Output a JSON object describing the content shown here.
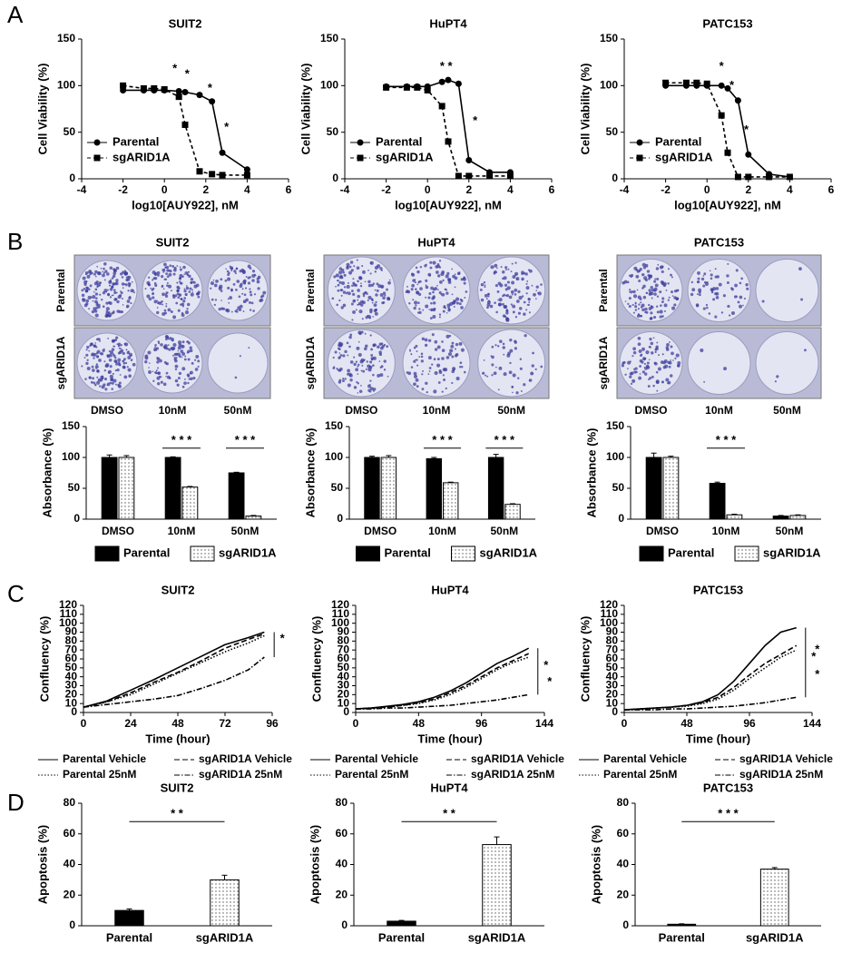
{
  "panel_labels": [
    "A",
    "B",
    "C",
    "D"
  ],
  "plates": [
    {
      "title": "SUIT2",
      "rows": [
        "Parental",
        "sgARID1A"
      ],
      "columns": [
        "DMSO",
        "10nM",
        "50nM"
      ]
    },
    {
      "title": "HuPT4",
      "rows": [
        "Parental",
        "sgARID1A"
      ],
      "columns": [
        "DMSO",
        "10nM",
        "50nM"
      ]
    },
    {
      "title": "PATC153",
      "rows": [
        "Parental",
        "sgARID1A"
      ],
      "columns": [
        "DMSO",
        "10nM",
        "50nM"
      ]
    }
  ],
  "chart_data": [
    {
      "type": "line",
      "title": "SUIT2",
      "x_label": "log10[AUY922], nM",
      "y_label": "Cell Viability (%)",
      "x": [
        -2,
        -1,
        -0.5,
        0,
        0.7,
        1,
        1.7,
        2.3,
        2.8,
        4
      ],
      "xlim": [
        -4,
        6
      ],
      "xticks": [
        -4,
        -2,
        0,
        2,
        4,
        6
      ],
      "ylim": [
        0,
        150
      ],
      "yticks": [
        0,
        50,
        100,
        150
      ],
      "legend": "lower left",
      "series": [
        {
          "name": "Parental",
          "color": "#000000",
          "dash": "none",
          "marker": "circle",
          "values": [
            95,
            95,
            95,
            95,
            94,
            93,
            90,
            83,
            28,
            10
          ]
        },
        {
          "name": "sgARID1A",
          "color": "#000000",
          "dash": "4 3",
          "marker": "square",
          "values": [
            100,
            97,
            97,
            96,
            88,
            58,
            8,
            5,
            4,
            4
          ]
        }
      ],
      "annotations": [
        {
          "text": "*",
          "x": 0.5,
          "y": 118
        },
        {
          "text": "*",
          "x": 1.1,
          "y": 112
        },
        {
          "text": "*",
          "x": 2.2,
          "y": 97
        },
        {
          "text": "*",
          "x": 3,
          "y": 55
        }
      ]
    },
    {
      "type": "line",
      "title": "HuPT4",
      "x_label": "log10[AUY922], nM",
      "y_label": "Cell Viability (%)",
      "x": [
        -2,
        -1,
        -0.5,
        0,
        0.7,
        1,
        1.5,
        2,
        3,
        4
      ],
      "xlim": [
        -4,
        6
      ],
      "xticks": [
        -4,
        -2,
        0,
        2,
        4,
        6
      ],
      "ylim": [
        0,
        150
      ],
      "yticks": [
        0,
        50,
        100,
        150
      ],
      "legend": "lower left",
      "series": [
        {
          "name": "Parental",
          "color": "#000000",
          "dash": "none",
          "marker": "circle",
          "values": [
            99,
            99,
            99,
            99,
            104,
            106,
            102,
            20,
            7,
            7
          ]
        },
        {
          "name": "sgARID1A",
          "color": "#000000",
          "dash": "4 3",
          "marker": "square",
          "values": [
            98,
            98,
            98,
            95,
            78,
            40,
            3,
            3,
            3,
            3
          ]
        }
      ],
      "annotations": [
        {
          "text": "* *",
          "x": 0.9,
          "y": 120
        },
        {
          "text": "*",
          "x": 2.3,
          "y": 62
        }
      ]
    },
    {
      "type": "line",
      "title": "PATC153",
      "x_label": "log10[AUY922], nM",
      "y_label": "Cell Viability (%)",
      "x": [
        -2,
        -1,
        -0.5,
        0,
        0.7,
        1,
        1.5,
        2,
        3,
        4
      ],
      "xlim": [
        -4,
        6
      ],
      "xticks": [
        -4,
        -2,
        0,
        2,
        4,
        6
      ],
      "ylim": [
        0,
        150
      ],
      "yticks": [
        0,
        50,
        100,
        150
      ],
      "legend": "lower left",
      "series": [
        {
          "name": "Parental",
          "color": "#000000",
          "dash": "none",
          "marker": "circle",
          "values": [
            100,
            100,
            100,
            100,
            100,
            97,
            84,
            26,
            5,
            2
          ]
        },
        {
          "name": "sgARID1A",
          "color": "#000000",
          "dash": "4 3",
          "marker": "square",
          "values": [
            103,
            103,
            103,
            102,
            68,
            28,
            2,
            2,
            2,
            2
          ]
        }
      ],
      "annotations": [
        {
          "text": "*",
          "x": 0.7,
          "y": 120
        },
        {
          "text": "*",
          "x": 1.2,
          "y": 100
        },
        {
          "text": "*",
          "x": 1.9,
          "y": 52
        }
      ]
    },
    {
      "type": "bar",
      "y_label": "Absorbance (%)",
      "categories": [
        "DMSO",
        "10nM",
        "50nM"
      ],
      "ylim": [
        0,
        150
      ],
      "yticks": [
        0,
        50,
        100,
        150
      ],
      "legend": "bottom",
      "series": [
        {
          "name": "Parental",
          "color": "#000000",
          "fill": "solid",
          "values": [
            100,
            100,
            75
          ],
          "errors": [
            4,
            1,
            1
          ]
        },
        {
          "name": "sgARID1A",
          "color": "#000000",
          "fill": "dots",
          "values": [
            100,
            52,
            5
          ],
          "errors": [
            3,
            1,
            1
          ]
        }
      ],
      "annotations": [
        {
          "text": "* * *",
          "x": [
            0.7,
            1.3
          ],
          "y": 115
        },
        {
          "text": "* * *",
          "x": [
            1.7,
            2.3
          ],
          "y": 115
        }
      ]
    },
    {
      "type": "bar",
      "y_label": "Absorbance (%)",
      "categories": [
        "DMSO",
        "10nM",
        "50nM"
      ],
      "ylim": [
        0,
        150
      ],
      "yticks": [
        0,
        50,
        100,
        150
      ],
      "legend": "bottom",
      "series": [
        {
          "name": "Parental",
          "color": "#000000",
          "fill": "solid",
          "values": [
            100,
            98,
            100
          ],
          "errors": [
            2,
            2,
            5
          ]
        },
        {
          "name": "sgARID1A",
          "color": "#000000",
          "fill": "dots",
          "values": [
            100,
            59,
            24
          ],
          "errors": [
            3,
            1,
            1
          ]
        }
      ],
      "annotations": [
        {
          "text": "* * *",
          "x": [
            0.7,
            1.3
          ],
          "y": 115
        },
        {
          "text": "* * *",
          "x": [
            1.7,
            2.3
          ],
          "y": 115
        }
      ]
    },
    {
      "type": "bar",
      "y_label": "Absorbance (%)",
      "categories": [
        "DMSO",
        "10nM",
        "50nM"
      ],
      "ylim": [
        0,
        150
      ],
      "yticks": [
        0,
        50,
        100,
        150
      ],
      "legend": "bottom",
      "series": [
        {
          "name": "Parental",
          "color": "#000000",
          "fill": "solid",
          "values": [
            100,
            58,
            5
          ],
          "errors": [
            7,
            2,
            1
          ]
        },
        {
          "name": "sgARID1A",
          "color": "#000000",
          "fill": "dots",
          "values": [
            100,
            7,
            6
          ],
          "errors": [
            2,
            1,
            1
          ]
        }
      ],
      "annotations": [
        {
          "text": "* * *",
          "x": [
            0.7,
            1.3
          ],
          "y": 115
        }
      ]
    },
    {
      "type": "line",
      "title": "SUIT2",
      "x_label": "Time (hour)",
      "y_label": "Confluency (%)",
      "x": [
        0,
        12,
        24,
        36,
        48,
        60,
        72,
        84,
        92
      ],
      "xlim": [
        0,
        96
      ],
      "xticks": [
        0,
        24,
        48,
        72,
        96
      ],
      "ylim": [
        0,
        120
      ],
      "yticks": [
        0,
        10,
        20,
        30,
        40,
        50,
        60,
        70,
        80,
        90,
        100,
        110,
        120
      ],
      "legend": "bottom",
      "series": [
        {
          "name": "Parental Vehicle",
          "color": "#000000",
          "dash": "none",
          "values": [
            6,
            13,
            25,
            37,
            50,
            63,
            76,
            84,
            90
          ]
        },
        {
          "name": "sgARID1A Vehicle",
          "color": "#000000",
          "dash": "6 3",
          "values": [
            6,
            12,
            22,
            34,
            45,
            58,
            72,
            82,
            88
          ]
        },
        {
          "name": "Parental 25nM",
          "color": "#000000",
          "dash": "1.5 2",
          "values": [
            6,
            12,
            20,
            32,
            44,
            56,
            68,
            78,
            86
          ]
        },
        {
          "name": "sgARID1A 25nM",
          "color": "#000000",
          "dash": "6 2 1.5 2",
          "values": [
            6,
            9,
            12,
            15,
            19,
            27,
            36,
            48,
            62
          ]
        }
      ],
      "annotations": [
        {
          "text": "*",
          "x": 97,
          "y": [
            62,
            90
          ]
        }
      ]
    },
    {
      "type": "line",
      "title": "HuPT4",
      "x_label": "Time (hour)",
      "y_label": "Confluency (%)",
      "x": [
        0,
        12,
        24,
        36,
        48,
        60,
        72,
        84,
        96,
        108,
        120,
        132
      ],
      "xlim": [
        0,
        144
      ],
      "xticks": [
        0,
        48,
        96,
        144
      ],
      "ylim": [
        0,
        120
      ],
      "yticks": [
        0,
        10,
        20,
        30,
        40,
        50,
        60,
        70,
        80,
        90,
        100,
        110,
        120
      ],
      "legend": "bottom",
      "series": [
        {
          "name": "Parental Vehicle",
          "color": "#000000",
          "dash": "none",
          "values": [
            4,
            5,
            7,
            9,
            12,
            17,
            24,
            33,
            44,
            55,
            63,
            72
          ]
        },
        {
          "name": "sgARID1A Vehicle",
          "color": "#000000",
          "dash": "6 3",
          "values": [
            4,
            5,
            6,
            8,
            11,
            15,
            22,
            30,
            40,
            50,
            58,
            66
          ]
        },
        {
          "name": "Parental 25nM",
          "color": "#000000",
          "dash": "1.5 2",
          "values": [
            4,
            5,
            6,
            8,
            10,
            14,
            20,
            28,
            38,
            48,
            56,
            62
          ]
        },
        {
          "name": "sgARID1A 25nM",
          "color": "#000000",
          "dash": "6 2 1.5 2",
          "values": [
            4,
            4,
            5,
            5,
            6,
            7,
            8,
            10,
            12,
            14,
            17,
            20
          ]
        }
      ],
      "annotations": [
        {
          "text": "*",
          "x": 139,
          "y": [
            20,
            72
          ]
        },
        {
          "text": "*",
          "x": 148,
          "y": 34
        }
      ]
    },
    {
      "type": "line",
      "title": "PATC153",
      "x_label": "Time (hour)",
      "y_label": "Confluency (%)",
      "x": [
        0,
        12,
        24,
        36,
        48,
        60,
        72,
        84,
        96,
        108,
        120,
        132
      ],
      "xlim": [
        0,
        144
      ],
      "xticks": [
        0,
        48,
        96,
        144
      ],
      "ylim": [
        0,
        120
      ],
      "yticks": [
        0,
        10,
        20,
        30,
        40,
        50,
        60,
        70,
        80,
        90,
        100,
        110,
        120
      ],
      "legend": "bottom",
      "series": [
        {
          "name": "Parental Vehicle",
          "color": "#000000",
          "dash": "none",
          "values": [
            3,
            4,
            5,
            6,
            8,
            12,
            20,
            35,
            55,
            75,
            90,
            95
          ]
        },
        {
          "name": "sgARID1A Vehicle",
          "color": "#000000",
          "dash": "6 3",
          "values": [
            3,
            4,
            5,
            6,
            8,
            11,
            17,
            28,
            42,
            55,
            65,
            75
          ]
        },
        {
          "name": "Parental 25nM",
          "color": "#000000",
          "dash": "1.5 2",
          "values": [
            3,
            4,
            5,
            6,
            7,
            10,
            15,
            25,
            38,
            50,
            62,
            70
          ]
        },
        {
          "name": "sgARID1A 25nM",
          "color": "#000000",
          "dash": "6 2 1.5 2",
          "values": [
            3,
            3,
            3,
            4,
            4,
            5,
            6,
            7,
            9,
            11,
            14,
            17
          ]
        }
      ],
      "annotations": [
        {
          "text": "*",
          "x": 139,
          "y": [
            17,
            95
          ]
        },
        {
          "text": "*",
          "x": 148,
          "y": 70
        },
        {
          "text": "*",
          "x": 148,
          "y": 42
        }
      ]
    },
    {
      "type": "bar",
      "title": "SUIT2",
      "y_label": "Apoptosis (%)",
      "categories": [
        "Parental",
        "sgARID1A"
      ],
      "values": [
        10,
        30
      ],
      "errors": [
        1,
        3
      ],
      "color": "#000000",
      "bar_fills": [
        "solid",
        "dots"
      ],
      "ylim": [
        0,
        80
      ],
      "yticks": [
        0,
        20,
        40,
        60,
        80
      ],
      "annotations": [
        {
          "text": "* *",
          "x": [
            0,
            1
          ],
          "y": 68
        }
      ]
    },
    {
      "type": "bar",
      "title": "HuPT4",
      "y_label": "Apoptosis (%)",
      "categories": [
        "Parental",
        "sgARID1A"
      ],
      "values": [
        3,
        53
      ],
      "errors": [
        0.5,
        5
      ],
      "color": "#000000",
      "bar_fills": [
        "solid",
        "dots"
      ],
      "ylim": [
        0,
        80
      ],
      "yticks": [
        0,
        20,
        40,
        60,
        80
      ],
      "annotations": [
        {
          "text": "* *",
          "x": [
            0,
            1
          ],
          "y": 68
        }
      ]
    },
    {
      "type": "bar",
      "title": "PATC153",
      "y_label": "Apoptosis (%)",
      "categories": [
        "Parental",
        "sgARID1A"
      ],
      "values": [
        1,
        37
      ],
      "errors": [
        0.3,
        1
      ],
      "color": "#000000",
      "bar_fills": [
        "solid",
        "dots"
      ],
      "ylim": [
        0,
        80
      ],
      "yticks": [
        0,
        20,
        40,
        60,
        80
      ],
      "annotations": [
        {
          "text": "* * *",
          "x": [
            0,
            1
          ],
          "y": 68
        }
      ]
    }
  ]
}
